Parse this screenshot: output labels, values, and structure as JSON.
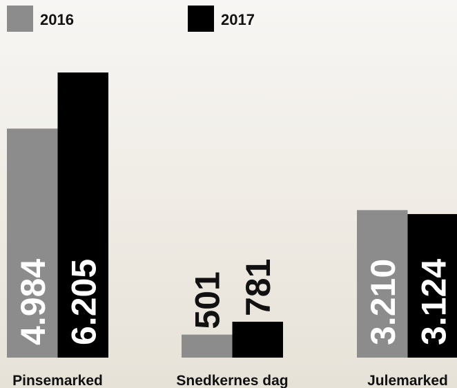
{
  "chart_data": {
    "type": "bar",
    "categories": [
      "Pinsemarked",
      "Snedkernes dag",
      "Julemarked"
    ],
    "series": [
      {
        "name": "2016",
        "color": "#8c8c8c",
        "values": [
          4984,
          501,
          3210
        ],
        "value_labels": [
          "4.984",
          "501",
          "3.210"
        ]
      },
      {
        "name": "2017",
        "color": "#000000",
        "values": [
          6205,
          781,
          3124
        ],
        "value_labels": [
          "6.205",
          "781",
          "3.124"
        ]
      }
    ]
  }
}
